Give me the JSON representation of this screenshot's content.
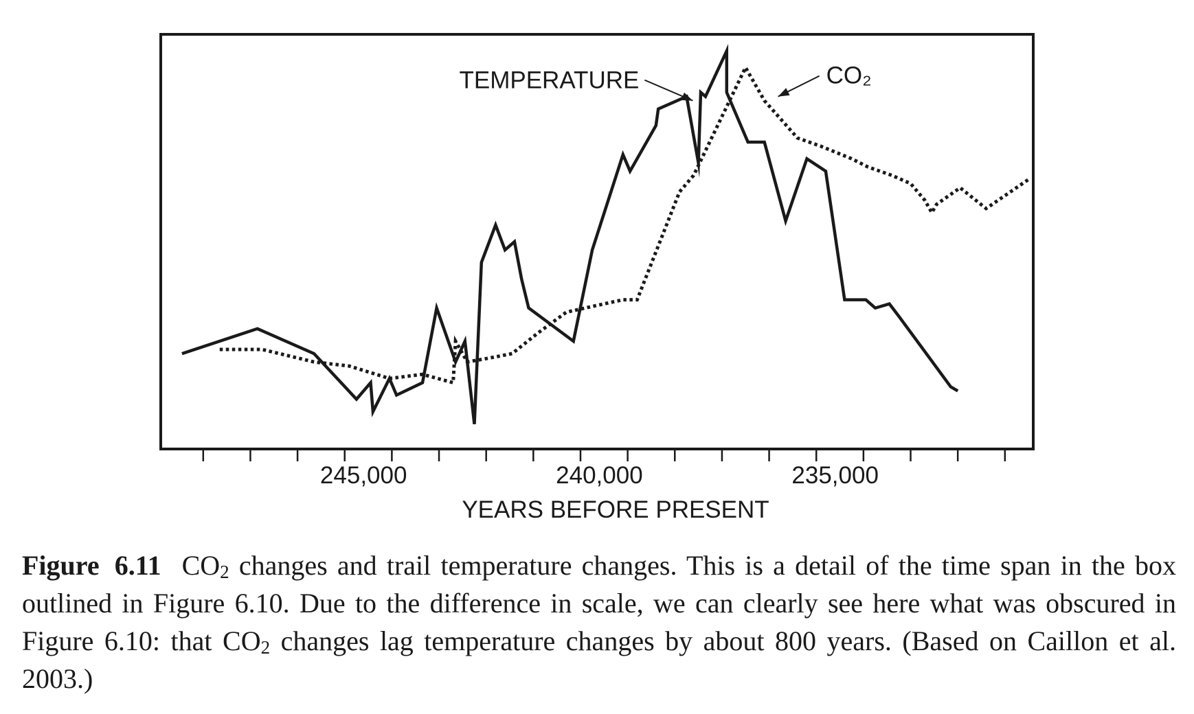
{
  "chart_data": {
    "type": "line",
    "xlabel": "YEARS BEFORE PRESENT",
    "ylabel": "",
    "xlim": [
      249300,
      230800
    ],
    "ylim": [
      0,
      100
    ],
    "x_ticks": [
      248400,
      247400,
      246400,
      245400,
      244400,
      243400,
      242400,
      241400,
      240400,
      239400,
      238400,
      237400,
      236400,
      235400,
      234400,
      233400,
      232400,
      231400
    ],
    "x_tick_labels": [
      {
        "value": 245000,
        "label": "245,000"
      },
      {
        "value": 240000,
        "label": "240,000"
      },
      {
        "value": 235000,
        "label": "235,000"
      }
    ],
    "grid": false,
    "series": [
      {
        "name": "TEMPERATURE",
        "style": "solid",
        "x": [
          248850,
          247250,
          246050,
          245150,
          244850,
          244800,
          244450,
          244300,
          243750,
          243450,
          243050,
          242850,
          242650,
          242500,
          242200,
          242000,
          241800,
          241650,
          241500,
          240550,
          240150,
          239500,
          239350,
          238800,
          238750,
          238150,
          237900,
          237850,
          237750,
          237300,
          237300,
          236850,
          236500,
          236050,
          235600,
          235200,
          234800,
          234350,
          234150,
          233850,
          233650,
          232550,
          232400
        ],
        "y": [
          23,
          29,
          23,
          12,
          16,
          9,
          17,
          13,
          16,
          34,
          21,
          26,
          6,
          45,
          54,
          48,
          50,
          41,
          34,
          26,
          48,
          71,
          67,
          78,
          82,
          85,
          69,
          86,
          85,
          96,
          86,
          74,
          74,
          55,
          70,
          67,
          36,
          36,
          34,
          35,
          32,
          15,
          14
        ]
      },
      {
        "name": "CO₂",
        "style": "dotted",
        "x": [
          248050,
          247150,
          246050,
          245300,
          244450,
          243750,
          243100,
          243050,
          242800,
          242300,
          241850,
          241300,
          240700,
          240300,
          239900,
          239500,
          239200,
          238300,
          238000,
          236900,
          236500,
          235800,
          235300,
          234650,
          234300,
          233800,
          233400,
          233100,
          232950,
          232850,
          232350,
          231800,
          230900
        ],
        "y": [
          24,
          24,
          21,
          20,
          17,
          18,
          16,
          26,
          21,
          22,
          23,
          28,
          33,
          34,
          35,
          36,
          36,
          62,
          66,
          92,
          84,
          75,
          73,
          70,
          68,
          66,
          64,
          60,
          57,
          59,
          63,
          58,
          65
        ]
      }
    ],
    "annotations": [
      {
        "text": "TEMPERATURE",
        "points_to": "TEMPERATURE",
        "at": [
          238020,
          84
        ]
      },
      {
        "text": "CO₂",
        "points_to": "CO₂",
        "at": [
          236210,
          85
        ]
      }
    ]
  },
  "caption": {
    "figure_number": "Figure 6.11",
    "co2_prefix": "CO",
    "co2_subscript": "2",
    "text_part1": " changes and trail temperature changes. This is a detail of the time span in the box outlined in Figure 6.10. Due to the difference in scale, we can clearly see here what was obscured in Figure 6.10: that ",
    "text_part2": " changes lag temperature changes by about 800 years. (Based on Caillon et al. 2003.)"
  }
}
